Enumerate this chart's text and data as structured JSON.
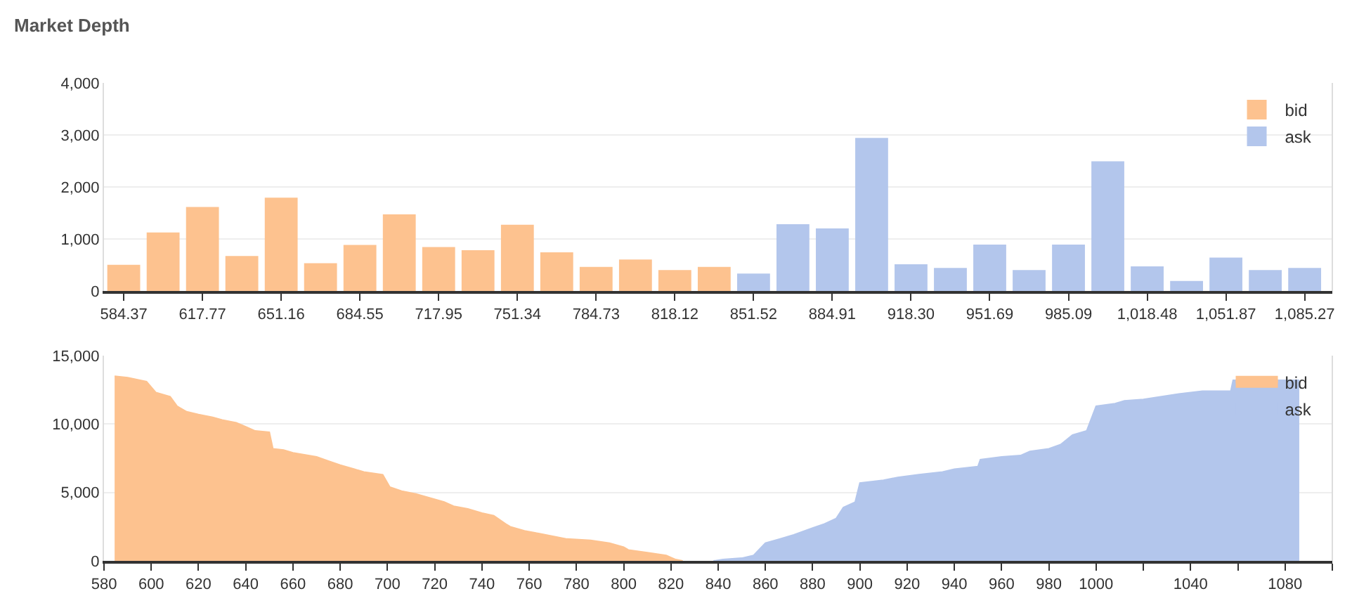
{
  "chart_data": [
    {
      "type": "bar",
      "title": "Market Depth",
      "series": [
        {
          "name": "bid",
          "color": "#fdc28f",
          "x": [
            584.37,
            601.07,
            617.77,
            634.46,
            651.16,
            667.85,
            684.55,
            701.25,
            717.95,
            734.64,
            751.34,
            768.03,
            784.73,
            801.43,
            818.12,
            834.82
          ],
          "values": [
            490,
            1110,
            1600,
            660,
            1780,
            520,
            870,
            1460,
            830,
            770,
            1260,
            730,
            450,
            590,
            390,
            450
          ]
        },
        {
          "name": "ask",
          "color": "#b3c6ec",
          "x": [
            851.52,
            868.21,
            884.91,
            901.61,
            918.3,
            935.0,
            951.69,
            968.39,
            985.09,
            1001.78,
            1018.48,
            1035.18,
            1051.87,
            1068.57,
            1085.27
          ],
          "values": [
            320,
            1270,
            1190,
            2930,
            500,
            430,
            880,
            390,
            880,
            2480,
            460,
            180,
            630,
            390,
            430
          ]
        }
      ],
      "xlim": [
        576,
        1097
      ],
      "xticks": [
        584.37,
        617.77,
        651.16,
        684.55,
        717.95,
        751.34,
        784.73,
        818.12,
        851.52,
        884.91,
        {
          "value": 918.3,
          "label": "918.30"
        },
        951.69,
        985.09,
        {
          "value": 1018.48,
          "label": "1,018.48"
        },
        {
          "value": 1051.87,
          "label": "1,051.87"
        },
        {
          "value": 1085.27,
          "label": "1,085.27"
        }
      ],
      "ylim": [
        0,
        4000
      ],
      "yticks": [
        0,
        {
          "value": 1000,
          "label": "1,000"
        },
        {
          "value": 2000,
          "label": "2,000"
        },
        {
          "value": 3000,
          "label": "3,000"
        },
        {
          "value": 4000,
          "label": "4,000"
        }
      ],
      "grid": "y",
      "legend": "top right"
    },
    {
      "type": "area",
      "series": [
        {
          "name": "bid",
          "color": "#fdc28f",
          "x": [
            584.5,
            590,
            598,
            602,
            608,
            611,
            615,
            620,
            626,
            630,
            636,
            640,
            644,
            650,
            651.5,
            656,
            660,
            670,
            675,
            680,
            686,
            690,
            698,
            701,
            706,
            712,
            718,
            724,
            728,
            734,
            740,
            745,
            750,
            752,
            758,
            764,
            770,
            776,
            786,
            794,
            800,
            802,
            810,
            818,
            822,
            825
          ],
          "values": [
            13500,
            13400,
            13100,
            12300,
            12000,
            11300,
            10900,
            10700,
            10500,
            10300,
            10100,
            9800,
            9500,
            9400,
            8200,
            8100,
            7900,
            7600,
            7300,
            7000,
            6700,
            6500,
            6300,
            5400,
            5100,
            4900,
            4600,
            4300,
            4000,
            3800,
            3500,
            3300,
            2700,
            2500,
            2200,
            2000,
            1800,
            1600,
            1500,
            1300,
            1000,
            800,
            600,
            400,
            100,
            0
          ]
        },
        {
          "name": "ask",
          "color": "#b3c6ec",
          "x": [
            838,
            842,
            850,
            855,
            860,
            866,
            872,
            880,
            885,
            890,
            893,
            898,
            900,
            910,
            916,
            925,
            935,
            940,
            950,
            951,
            960,
            968,
            972,
            980,
            985,
            990,
            996,
            1000,
            1008,
            1012,
            1020,
            1035,
            1040,
            1045,
            1057,
            1058,
            1086
          ],
          "values": [
            0,
            100,
            200,
            400,
            1300,
            1600,
            1900,
            2400,
            2700,
            3100,
            3900,
            4300,
            5700,
            5900,
            6100,
            6300,
            6500,
            6700,
            6900,
            7400,
            7600,
            7700,
            8000,
            8200,
            8500,
            9200,
            9500,
            11300,
            11500,
            11700,
            11800,
            12200,
            12300,
            12400,
            12400,
            13200,
            13200
          ]
        }
      ],
      "xlim": [
        580,
        1100
      ],
      "xticks": [
        580,
        600,
        620,
        640,
        660,
        680,
        700,
        720,
        740,
        760,
        780,
        800,
        820,
        840,
        860,
        880,
        900,
        920,
        940,
        960,
        980,
        1000,
        {
          "value": 1020,
          "label": null
        },
        1040,
        {
          "value": 1060,
          "label": null
        },
        1080,
        {
          "value": 1100,
          "label": null
        }
      ],
      "ylim": [
        0,
        15000
      ],
      "yticks": [
        0,
        {
          "value": 5000,
          "label": "5,000"
        },
        {
          "value": 10000,
          "label": "10,000"
        },
        {
          "value": 15000,
          "label": "15,000"
        }
      ],
      "grid": "y",
      "legend": "top right"
    }
  ]
}
